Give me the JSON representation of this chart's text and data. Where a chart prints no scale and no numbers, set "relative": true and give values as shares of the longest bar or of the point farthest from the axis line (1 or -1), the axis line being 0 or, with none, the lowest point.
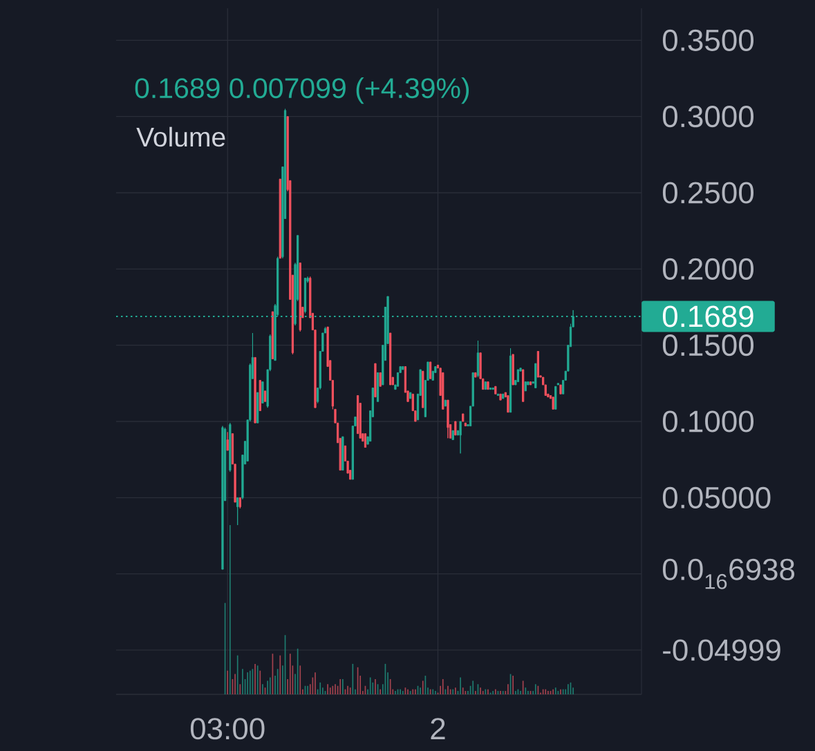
{
  "chart_data": [
    {
      "type": "candlestick",
      "annotations": [
        "0.1689 0.007099 (+4.39%)"
      ],
      "categories": [
        null,
        null,
        "03:00",
        null,
        null,
        null,
        null,
        null,
        null,
        null,
        null,
        null,
        null,
        null,
        null,
        null,
        null,
        null,
        null,
        null,
        null,
        null,
        null,
        null,
        null,
        null,
        null,
        null,
        null,
        null,
        null,
        null,
        null,
        null,
        null,
        null,
        null,
        null,
        null,
        null,
        null,
        null,
        null,
        null,
        null,
        null,
        null,
        null,
        null,
        null,
        null,
        null,
        null,
        null,
        null,
        null,
        null,
        null,
        null,
        null,
        null,
        null,
        null,
        null,
        null,
        null,
        null,
        null,
        null,
        null,
        null,
        null,
        null,
        null,
        null,
        null,
        null,
        null,
        null,
        null,
        null,
        null,
        null,
        null,
        null,
        null,
        "2",
        null,
        null,
        null,
        null,
        null,
        null,
        null,
        null,
        null,
        null,
        null,
        null,
        null,
        null,
        null,
        null,
        null,
        null,
        null,
        null,
        null,
        null,
        null,
        null,
        null,
        null,
        null,
        null,
        null,
        null,
        null,
        null,
        null,
        null,
        null,
        null,
        null,
        null,
        null,
        null,
        null,
        null,
        null,
        null,
        null,
        null,
        null,
        null,
        null,
        null,
        null,
        null,
        null,
        null
      ],
      "ohlc": [
        [
          0.003,
          0.097,
          0.003,
          0.096
        ],
        [
          0.048,
          0.096,
          0.048,
          0.095
        ],
        [
          0.088,
          0.093,
          0.081,
          0.081
        ],
        [
          0.068,
          0.099,
          0.067,
          0.098
        ],
        [
          0.092,
          0.092,
          0.072,
          0.072
        ],
        [
          0.072,
          0.072,
          0.047,
          0.047
        ],
        [
          0.044,
          0.05,
          0.032,
          0.05
        ],
        [
          0.05,
          0.05,
          0.043,
          0.044
        ],
        [
          0.05,
          0.078,
          0.049,
          0.078
        ],
        [
          0.072,
          0.087,
          0.072,
          0.087
        ],
        [
          0.074,
          0.101,
          0.074,
          0.101
        ],
        [
          0.101,
          0.138,
          0.1,
          0.137
        ],
        [
          0.128,
          0.158,
          0.128,
          0.142
        ],
        [
          0.142,
          0.142,
          0.099,
          0.099
        ],
        [
          0.099,
          0.119,
          0.099,
          0.119
        ],
        [
          0.127,
          0.127,
          0.107,
          0.107
        ],
        [
          0.112,
          0.126,
          0.112,
          0.126
        ],
        [
          0.12,
          0.12,
          0.113,
          0.113
        ],
        [
          0.11,
          0.134,
          0.109,
          0.134
        ],
        [
          0.134,
          0.157,
          0.133,
          0.156
        ],
        [
          0.172,
          0.172,
          0.141,
          0.141
        ],
        [
          0.14,
          0.177,
          0.14,
          0.176
        ],
        [
          0.17,
          0.208,
          0.169,
          0.207
        ],
        [
          0.259,
          0.259,
          0.207,
          0.207
        ],
        [
          0.208,
          0.267,
          0.207,
          0.267
        ],
        [
          0.233,
          0.305,
          0.233,
          0.304
        ],
        [
          0.3,
          0.3,
          0.251,
          0.252
        ],
        [
          0.258,
          0.258,
          0.18,
          0.18
        ],
        [
          0.196,
          0.196,
          0.144,
          0.145
        ],
        [
          0.164,
          0.204,
          0.163,
          0.203
        ],
        [
          0.18,
          0.222,
          0.179,
          0.222
        ],
        [
          0.204,
          0.204,
          0.159,
          0.16
        ],
        [
          0.175,
          0.175,
          0.168,
          0.168
        ],
        [
          0.172,
          0.194,
          0.171,
          0.194
        ],
        [
          0.192,
          0.195,
          0.191,
          0.194
        ],
        [
          0.194,
          0.195,
          0.168,
          0.168
        ],
        [
          0.171,
          0.171,
          0.16,
          0.16
        ],
        [
          0.16,
          0.16,
          0.109,
          0.109
        ],
        [
          0.113,
          0.122,
          0.112,
          0.122
        ],
        [
          0.122,
          0.146,
          0.121,
          0.146
        ],
        [
          0.146,
          0.158,
          0.146,
          0.158
        ],
        [
          0.158,
          0.162,
          0.158,
          0.161
        ],
        [
          0.162,
          0.162,
          0.136,
          0.136
        ],
        [
          0.14,
          0.14,
          0.127,
          0.127
        ],
        [
          0.127,
          0.127,
          0.108,
          0.11
        ],
        [
          0.108,
          0.108,
          0.099,
          0.099
        ],
        [
          0.099,
          0.099,
          0.086,
          0.086
        ],
        [
          0.089,
          0.089,
          0.068,
          0.068
        ],
        [
          0.068,
          0.09,
          0.068,
          0.09
        ],
        [
          0.084,
          0.084,
          0.074,
          0.074
        ],
        [
          0.074,
          0.074,
          0.066,
          0.066
        ],
        [
          0.068,
          0.068,
          0.062,
          0.062
        ],
        [
          0.062,
          0.097,
          0.062,
          0.097
        ],
        [
          0.097,
          0.103,
          0.097,
          0.103
        ],
        [
          0.117,
          0.117,
          0.092,
          0.092
        ],
        [
          0.112,
          0.112,
          0.089,
          0.089
        ],
        [
          0.092,
          0.092,
          0.087,
          0.087
        ],
        [
          0.092,
          0.092,
          0.083,
          0.083
        ],
        [
          0.085,
          0.09,
          0.085,
          0.09
        ],
        [
          0.087,
          0.107,
          0.087,
          0.107
        ],
        [
          0.103,
          0.122,
          0.103,
          0.122
        ],
        [
          0.138,
          0.138,
          0.116,
          0.116
        ],
        [
          0.113,
          0.132,
          0.113,
          0.132
        ],
        [
          0.132,
          0.132,
          0.123,
          0.123
        ],
        [
          0.124,
          0.15,
          0.124,
          0.15
        ],
        [
          0.14,
          0.175,
          0.14,
          0.175
        ],
        [
          0.151,
          0.182,
          0.151,
          0.182
        ],
        [
          0.158,
          0.158,
          0.124,
          0.124
        ],
        [
          0.129,
          0.129,
          0.124,
          0.124
        ],
        [
          0.121,
          0.124,
          0.121,
          0.124
        ],
        [
          0.123,
          0.132,
          0.123,
          0.132
        ],
        [
          0.132,
          0.136,
          0.132,
          0.136
        ],
        [
          0.134,
          0.136,
          0.134,
          0.136
        ],
        [
          0.136,
          0.136,
          0.119,
          0.119
        ],
        [
          0.12,
          0.12,
          0.113,
          0.113
        ],
        [
          0.115,
          0.119,
          0.115,
          0.119
        ],
        [
          0.118,
          0.118,
          0.107,
          0.107
        ],
        [
          0.107,
          0.107,
          0.1,
          0.1
        ],
        [
          0.101,
          0.118,
          0.101,
          0.118
        ],
        [
          0.117,
          0.134,
          0.117,
          0.134
        ],
        [
          0.133,
          0.133,
          0.109,
          0.109
        ],
        [
          0.103,
          0.127,
          0.103,
          0.127
        ],
        [
          0.127,
          0.139,
          0.127,
          0.139
        ],
        [
          0.139,
          0.139,
          0.128,
          0.128
        ],
        [
          0.127,
          0.133,
          0.127,
          0.133
        ],
        [
          0.132,
          0.136,
          0.132,
          0.136
        ],
        [
          0.137,
          0.137,
          0.135,
          0.135
        ],
        [
          0.135,
          0.135,
          0.117,
          0.117
        ],
        [
          0.132,
          0.132,
          0.108,
          0.108
        ],
        [
          0.11,
          0.114,
          0.11,
          0.114
        ],
        [
          0.114,
          0.114,
          0.089,
          0.096
        ],
        [
          0.098,
          0.098,
          0.089,
          0.089
        ],
        [
          0.088,
          0.094,
          0.088,
          0.094
        ],
        [
          0.1,
          0.1,
          0.091,
          0.091
        ],
        [
          0.091,
          0.094,
          0.091,
          0.094
        ],
        [
          0.091,
          0.1,
          0.079,
          0.1
        ],
        [
          0.105,
          0.105,
          0.1,
          0.1
        ],
        [
          0.099,
          0.099,
          0.097,
          0.097
        ],
        [
          0.097,
          0.098,
          0.097,
          0.098
        ],
        [
          0.097,
          0.11,
          0.097,
          0.11
        ],
        [
          0.11,
          0.132,
          0.11,
          0.132
        ],
        [
          0.132,
          0.132,
          0.129,
          0.129
        ],
        [
          0.13,
          0.153,
          0.129,
          0.145
        ],
        [
          0.145,
          0.145,
          0.128,
          0.128
        ],
        [
          0.128,
          0.128,
          0.121,
          0.121
        ],
        [
          0.121,
          0.126,
          0.121,
          0.126
        ],
        [
          0.126,
          0.126,
          0.121,
          0.121
        ],
        [
          0.121,
          0.122,
          0.121,
          0.122
        ],
        [
          0.121,
          0.122,
          0.121,
          0.122
        ],
        [
          0.123,
          0.123,
          0.118,
          0.118
        ],
        [
          0.117,
          0.118,
          0.117,
          0.118
        ],
        [
          0.118,
          0.118,
          0.114,
          0.114
        ],
        [
          0.115,
          0.118,
          0.115,
          0.118
        ],
        [
          0.119,
          0.119,
          0.116,
          0.116
        ],
        [
          0.117,
          0.117,
          0.106,
          0.106
        ],
        [
          0.106,
          0.148,
          0.106,
          0.143
        ],
        [
          0.144,
          0.144,
          0.124,
          0.124
        ],
        [
          0.124,
          0.127,
          0.124,
          0.127
        ],
        [
          0.126,
          0.134,
          0.126,
          0.134
        ],
        [
          0.133,
          0.135,
          0.133,
          0.135
        ],
        [
          0.134,
          0.134,
          0.113,
          0.113
        ],
        [
          0.12,
          0.126,
          0.12,
          0.126
        ],
        [
          0.124,
          0.126,
          0.124,
          0.126
        ],
        [
          0.126,
          0.126,
          0.124,
          0.124
        ],
        [
          0.125,
          0.126,
          0.125,
          0.126
        ],
        [
          0.122,
          0.138,
          0.122,
          0.138
        ],
        [
          0.146,
          0.146,
          0.129,
          0.129
        ],
        [
          0.13,
          0.13,
          0.129,
          0.129
        ],
        [
          0.129,
          0.129,
          0.124,
          0.124
        ],
        [
          0.124,
          0.124,
          0.117,
          0.117
        ],
        [
          0.118,
          0.118,
          0.116,
          0.116
        ],
        [
          0.117,
          0.117,
          0.115,
          0.115
        ],
        [
          0.116,
          0.116,
          0.108,
          0.108
        ],
        [
          0.108,
          0.123,
          0.108,
          0.123
        ],
        [
          0.124,
          0.125,
          0.124,
          0.125
        ],
        [
          0.124,
          0.124,
          0.118,
          0.118
        ],
        [
          0.118,
          0.127,
          0.118,
          0.127
        ],
        [
          0.127,
          0.133,
          0.127,
          0.133
        ],
        [
          0.133,
          0.15,
          0.133,
          0.15
        ],
        [
          0.149,
          0.164,
          0.149,
          0.162
        ],
        [
          0.162,
          0.173,
          0.162,
          0.1689
        ]
      ],
      "colors": [
        "#22ab94",
        "#22ab94",
        "#f7525f",
        "#22ab94",
        "#f7525f",
        "#f7525f",
        "#22ab94",
        "#f7525f",
        "#22ab94",
        "#22ab94",
        "#22ab94",
        "#22ab94",
        "#22ab94",
        "#f7525f",
        "#22ab94",
        "#f7525f",
        "#22ab94",
        "#f7525f",
        "#22ab94",
        "#22ab94",
        "#f7525f",
        "#22ab94",
        "#22ab94",
        "#f7525f",
        "#22ab94",
        "#22ab94",
        "#f7525f",
        "#f7525f",
        "#f7525f",
        "#22ab94",
        "#22ab94",
        "#f7525f",
        "#f7525f",
        "#22ab94",
        "#22ab94",
        "#f7525f",
        "#f7525f",
        "#f7525f",
        "#22ab94",
        "#22ab94",
        "#22ab94",
        "#22ab94",
        "#f7525f",
        "#f7525f",
        "#f7525f",
        "#f7525f",
        "#f7525f",
        "#f7525f",
        "#22ab94",
        "#f7525f",
        "#f7525f",
        "#f7525f",
        "#22ab94",
        "#22ab94",
        "#f7525f",
        "#f7525f",
        "#f7525f",
        "#f7525f",
        "#22ab94",
        "#22ab94",
        "#22ab94",
        "#f7525f",
        "#22ab94",
        "#f7525f",
        "#22ab94",
        "#22ab94",
        "#22ab94",
        "#f7525f",
        "#f7525f",
        "#22ab94",
        "#22ab94",
        "#22ab94",
        "#22ab94",
        "#f7525f",
        "#f7525f",
        "#22ab94",
        "#f7525f",
        "#f7525f",
        "#22ab94",
        "#22ab94",
        "#f7525f",
        "#22ab94",
        "#22ab94",
        "#f7525f",
        "#22ab94",
        "#22ab94",
        "#f7525f",
        "#f7525f",
        "#f7525f",
        "#22ab94",
        "#f7525f",
        "#f7525f",
        "#22ab94",
        "#f7525f",
        "#22ab94",
        "#22ab94",
        "#f7525f",
        "#f7525f",
        "#22ab94",
        "#22ab94",
        "#22ab94",
        "#f7525f",
        "#22ab94",
        "#f7525f",
        "#f7525f",
        "#22ab94",
        "#f7525f",
        "#22ab94",
        "#22ab94",
        "#f7525f",
        "#22ab94",
        "#f7525f",
        "#22ab94",
        "#f7525f",
        "#f7525f",
        "#22ab94",
        "#f7525f",
        "#22ab94",
        "#22ab94",
        "#22ab94",
        "#f7525f",
        "#22ab94",
        "#22ab94",
        "#f7525f",
        "#22ab94",
        "#22ab94",
        "#f7525f",
        "#f7525f",
        "#f7525f",
        "#f7525f",
        "#f7525f",
        "#f7525f",
        "#f7525f",
        "#22ab94",
        "#22ab94",
        "#f7525f",
        "#22ab94",
        "#22ab94",
        "#22ab94",
        "#22ab94",
        "#22ab94"
      ],
      "ylim": [
        -0.079,
        0.371
      ],
      "yticks": [
        {
          "value": -0.04999,
          "label": "-0.04999"
        },
        {
          "value": 0,
          "label": "0.0$_{16}$6938"
        },
        {
          "value": 0.05,
          "label": "0.05000"
        },
        {
          "value": 0.1,
          "label": "0.1000"
        },
        {
          "value": 0.15,
          "label": "0.1500"
        },
        {
          "value": 0.2,
          "label": "0.2000"
        },
        {
          "value": 0.25,
          "label": "0.2500"
        },
        {
          "value": 0.3,
          "label": "0.3000"
        },
        {
          "value": 0.35,
          "label": "0.3500"
        }
      ],
      "grid": true,
      "ref_lines": [
        {
          "axis": "y",
          "value": 0.1689,
          "label": "0.1689",
          "color": "#22ab94",
          "line_style": "dotted"
        }
      ]
    },
    {
      "type": "bar",
      "title": "Volume",
      "relative": true,
      "categories": [
        null,
        null,
        null,
        null,
        null,
        null,
        null,
        null,
        null,
        null,
        null,
        null,
        null,
        null,
        null,
        null,
        null,
        null,
        null,
        null,
        null,
        null,
        null,
        null,
        null,
        null,
        null,
        null,
        null,
        null,
        null,
        null,
        null,
        null,
        null,
        null,
        null,
        null,
        null,
        null,
        null,
        null,
        null,
        null,
        null,
        null,
        null,
        null,
        null,
        null,
        null,
        null,
        null,
        null,
        null,
        null,
        null,
        null,
        null,
        null,
        null,
        null,
        null,
        null,
        null,
        null,
        null,
        null,
        null,
        null,
        null,
        null,
        null,
        null,
        null,
        null,
        null,
        null,
        null,
        null,
        null,
        null,
        null,
        null,
        null,
        null,
        null,
        null,
        null,
        null,
        null,
        null,
        null,
        null,
        null,
        null,
        null,
        null,
        null,
        null,
        null,
        null,
        null,
        null,
        null,
        null,
        null,
        null,
        null,
        null,
        null,
        null,
        null,
        null,
        null,
        null,
        null,
        null,
        null,
        null,
        null,
        null,
        null,
        null,
        null,
        null,
        null,
        null,
        null,
        null,
        null,
        null,
        null,
        null,
        null,
        null,
        null,
        null,
        null,
        null,
        null
      ],
      "values": [
        null,
        0.54,
        0.14,
        1,
        0.09,
        0.12,
        0.23,
        0.06,
        0.15,
        0.09,
        0.13,
        0.14,
        0.15,
        0.18,
        0.17,
        0.14,
        0.06,
        0.04,
        0.08,
        0.1,
        0.24,
        0.11,
        0.15,
        0.23,
        0.17,
        0.35,
        0.09,
        0.24,
        0.17,
        0.12,
        0.27,
        0.17,
        0.03,
        0.05,
        0.05,
        0.06,
        0.1,
        0.13,
        0.03,
        0.07,
        0.04,
        0.02,
        0.06,
        0.04,
        0.05,
        0.06,
        0.05,
        0.09,
        0.09,
        0.03,
        0.05,
        0.04,
        0.18,
        0.03,
        0.16,
        0.11,
        0.02,
        0.05,
        0.03,
        0.1,
        0.07,
        0.09,
        0.06,
        0.03,
        0.06,
        0.18,
        0.13,
        0.09,
        0.03,
        0.02,
        0.03,
        0.03,
        0.02,
        0.04,
        0.03,
        0.02,
        0.03,
        0.03,
        0.05,
        0.04,
        0.08,
        0.11,
        0.04,
        0.03,
        0.03,
        0.02,
        0.01,
        0.05,
        0.09,
        0.03,
        0.05,
        0.03,
        0.03,
        0.04,
        0.02,
        0.1,
        0.04,
        0.02,
        0.02,
        0.05,
        0.08,
        0.02,
        0.06,
        0.04,
        0.02,
        0.03,
        0.03,
        0.01,
        0.02,
        0.03,
        0.02,
        0.02,
        0.02,
        0.02,
        0.06,
        0.12,
        0.11,
        0.02,
        0.03,
        0.02,
        0.08,
        0.04,
        0.02,
        0.02,
        0.02,
        0.06,
        0.05,
        0.01,
        0.03,
        0.03,
        0.02,
        0.02,
        0.03,
        0.04,
        0.02,
        0.03,
        0.03,
        0.03,
        0.06,
        0.07,
        0.04
      ],
      "colors": [
        "#1e7b6f",
        "#1e7b6f",
        "#a4424e",
        "#1e7b6f",
        "#a4424e",
        "#a4424e",
        "#1e7b6f",
        "#a4424e",
        "#1e7b6f",
        "#1e7b6f",
        "#1e7b6f",
        "#1e7b6f",
        "#1e7b6f",
        "#a4424e",
        "#1e7b6f",
        "#a4424e",
        "#1e7b6f",
        "#a4424e",
        "#1e7b6f",
        "#1e7b6f",
        "#a4424e",
        "#1e7b6f",
        "#1e7b6f",
        "#a4424e",
        "#1e7b6f",
        "#1e7b6f",
        "#a4424e",
        "#a4424e",
        "#a4424e",
        "#1e7b6f",
        "#1e7b6f",
        "#a4424e",
        "#a4424e",
        "#1e7b6f",
        "#1e7b6f",
        "#a4424e",
        "#a4424e",
        "#a4424e",
        "#1e7b6f",
        "#1e7b6f",
        "#1e7b6f",
        "#1e7b6f",
        "#a4424e",
        "#a4424e",
        "#a4424e",
        "#a4424e",
        "#a4424e",
        "#a4424e",
        "#1e7b6f",
        "#a4424e",
        "#a4424e",
        "#a4424e",
        "#1e7b6f",
        "#1e7b6f",
        "#a4424e",
        "#a4424e",
        "#a4424e",
        "#a4424e",
        "#1e7b6f",
        "#1e7b6f",
        "#1e7b6f",
        "#a4424e",
        "#1e7b6f",
        "#a4424e",
        "#1e7b6f",
        "#1e7b6f",
        "#1e7b6f",
        "#a4424e",
        "#a4424e",
        "#1e7b6f",
        "#1e7b6f",
        "#1e7b6f",
        "#1e7b6f",
        "#a4424e",
        "#a4424e",
        "#1e7b6f",
        "#a4424e",
        "#a4424e",
        "#1e7b6f",
        "#1e7b6f",
        "#a4424e",
        "#1e7b6f",
        "#1e7b6f",
        "#a4424e",
        "#1e7b6f",
        "#1e7b6f",
        "#a4424e",
        "#a4424e",
        "#a4424e",
        "#1e7b6f",
        "#a4424e",
        "#a4424e",
        "#1e7b6f",
        "#a4424e",
        "#1e7b6f",
        "#1e7b6f",
        "#a4424e",
        "#a4424e",
        "#1e7b6f",
        "#1e7b6f",
        "#1e7b6f",
        "#a4424e",
        "#1e7b6f",
        "#a4424e",
        "#a4424e",
        "#1e7b6f",
        "#a4424e",
        "#1e7b6f",
        "#1e7b6f",
        "#a4424e",
        "#1e7b6f",
        "#a4424e",
        "#1e7b6f",
        "#a4424e",
        "#a4424e",
        "#1e7b6f",
        "#a4424e",
        "#1e7b6f",
        "#1e7b6f",
        "#1e7b6f",
        "#a4424e",
        "#1e7b6f",
        "#1e7b6f",
        "#a4424e",
        "#1e7b6f",
        "#1e7b6f",
        "#a4424e",
        "#a4424e",
        "#a4424e",
        "#a4424e",
        "#a4424e",
        "#a4424e",
        "#a4424e",
        "#1e7b6f",
        "#1e7b6f",
        "#a4424e",
        "#1e7b6f",
        "#1e7b6f",
        "#1e7b6f",
        "#1e7b6f",
        "#1e7b6f"
      ]
    }
  ]
}
